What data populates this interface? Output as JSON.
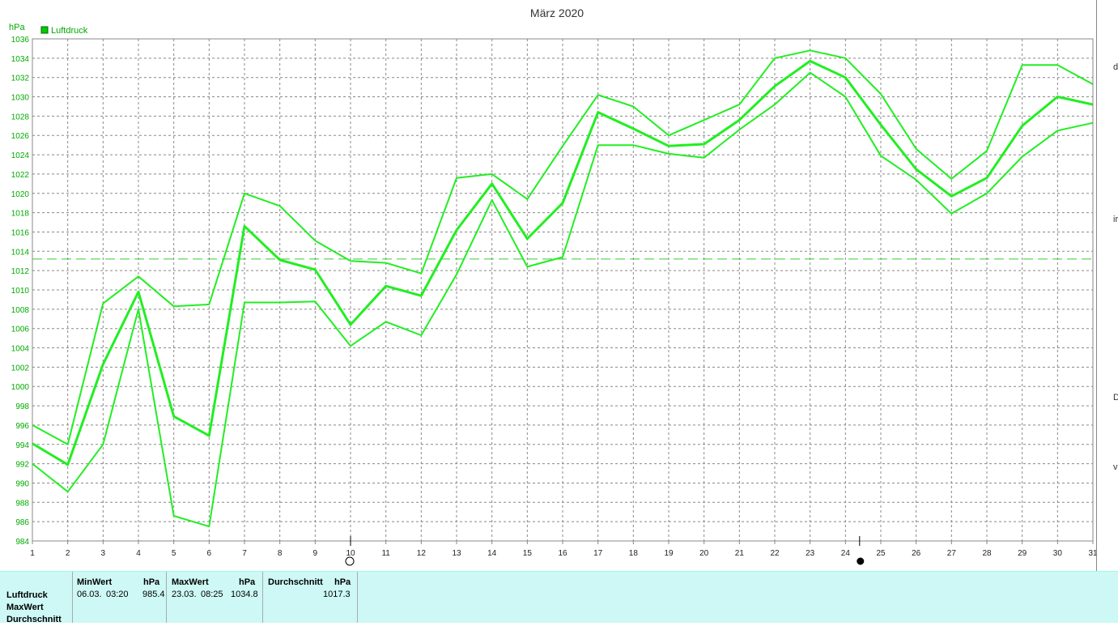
{
  "chart_data": {
    "type": "line",
    "title": "März 2020",
    "ylabel": "hPa",
    "legend": "Luftdruck",
    "legend_color": "#00cc00",
    "line_color": "#22ee22",
    "ylim": [
      984,
      1036
    ],
    "yticks": [
      984,
      986,
      988,
      990,
      992,
      994,
      996,
      998,
      1000,
      1002,
      1004,
      1006,
      1008,
      1010,
      1012,
      1014,
      1016,
      1018,
      1020,
      1022,
      1024,
      1026,
      1028,
      1030,
      1032,
      1034,
      1036
    ],
    "x": [
      1,
      2,
      3,
      4,
      5,
      6,
      7,
      8,
      9,
      10,
      11,
      12,
      13,
      14,
      15,
      16,
      17,
      18,
      19,
      20,
      21,
      22,
      23,
      24,
      25,
      26,
      27,
      28,
      29,
      30,
      31
    ],
    "series": [
      {
        "role": "max",
        "values": [
          996,
          994,
          1008.6,
          1011.4,
          1008.3,
          1008.5,
          1020,
          1018.7,
          1015.1,
          1013,
          1012.8,
          1011.7,
          1021.6,
          1022,
          1019.4,
          1024.9,
          1030.2,
          1029,
          1026,
          1027.6,
          1029.2,
          1034,
          1034.8,
          1034,
          1030.3,
          1024.6,
          1021.5,
          1024.4,
          1033.3,
          1033.3,
          1031.3
        ]
      },
      {
        "role": "mean",
        "values": [
          994.1,
          991.9,
          1002.3,
          1009.8,
          996.9,
          994.9,
          1016.6,
          1013.1,
          1012.1,
          1006.4,
          1010.4,
          1009.4,
          1016.2,
          1021,
          1015.3,
          1019,
          1028.4,
          1026.7,
          1024.9,
          1025.1,
          1027.6,
          1031.1,
          1033.7,
          1032,
          1027.1,
          1022.5,
          1019.7,
          1021.6,
          1027,
          1030,
          1029.2
        ]
      },
      {
        "role": "min",
        "values": [
          992,
          989.1,
          994,
          1008,
          986.6,
          985.5,
          1008.7,
          1008.7,
          1008.8,
          1004.2,
          1006.7,
          1005.3,
          1011.6,
          1019.3,
          1012.4,
          1013.4,
          1025,
          1025,
          1024.1,
          1023.7,
          1026.6,
          1029.2,
          1032.5,
          1030,
          1023.9,
          1021.4,
          1017.9,
          1020,
          1023.8,
          1026.5,
          1027.3
        ]
      }
    ],
    "average_line": 1013.2,
    "grid": true,
    "new_moon_day": 24.4,
    "full_moon_day": 10
  },
  "stats": {
    "row_labels": [
      "Luftdruck",
      "MaxWert",
      "Durchschnitt"
    ],
    "min": {
      "header": "MinWert",
      "unit": "hPa",
      "date": "06.03.",
      "time": "03:20",
      "value": "985.4"
    },
    "max": {
      "header": "MaxWert",
      "unit": "hPa",
      "date": "23.03.",
      "time": "08:25",
      "value": "1034.8"
    },
    "avg": {
      "header": "Durchschnitt",
      "unit": "hPa",
      "value": "1017.3"
    }
  },
  "edge_letters": [
    "d",
    "ir",
    "D",
    "vi"
  ]
}
